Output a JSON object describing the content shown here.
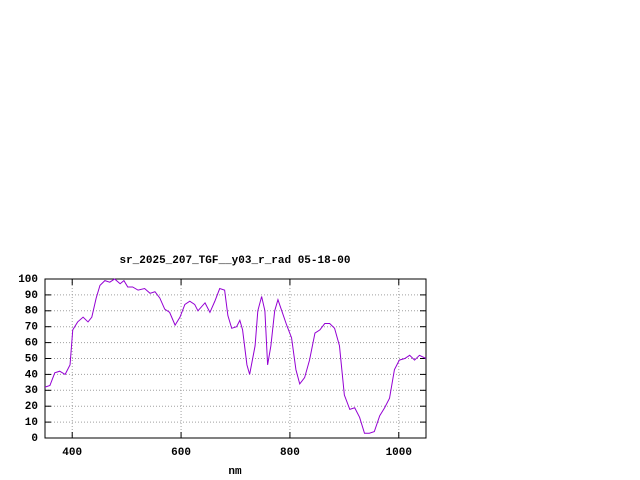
{
  "chart_data": {
    "type": "line",
    "title": "sr_2025_207_TGF__y03_r_rad 05-18-00",
    "x_label": "nm",
    "xlim": [
      350,
      1050
    ],
    "xticks": [
      400,
      600,
      800,
      1000
    ],
    "ylim": [
      0,
      100
    ],
    "yticks": [
      0,
      10,
      20,
      30,
      40,
      50,
      60,
      70,
      80,
      90,
      100
    ],
    "grid": true,
    "series": [
      {
        "color": "#9400d3",
        "x": [
          350,
          359,
          368,
          377,
          387,
          396,
          401,
          410,
          420,
          429,
          436,
          444,
          451,
          460,
          469,
          478,
          488,
          495,
          502,
          511,
          521,
          533,
          543,
          552,
          561,
          570,
          579,
          589,
          598,
          607,
          616,
          625,
          631,
          644,
          653,
          662,
          671,
          680,
          686,
          693,
          702,
          708,
          713,
          721,
          726,
          736,
          741,
          748,
          754,
          759,
          765,
          772,
          778,
          785,
          794,
          803,
          811,
          818,
          827,
          836,
          846,
          855,
          864,
          873,
          882,
          891,
          900,
          910,
          919,
          928,
          937,
          946,
          955,
          965,
          974,
          983,
          992,
          1001,
          1011,
          1020,
          1029,
          1038,
          1050
        ],
        "values": [
          32,
          33,
          41,
          42,
          40,
          46,
          68,
          73,
          76,
          73,
          76,
          88,
          96,
          99,
          98,
          100,
          97,
          99,
          95,
          95,
          93,
          94,
          91,
          92,
          88,
          81,
          79,
          71,
          76,
          84,
          86,
          84,
          80,
          85,
          79,
          86,
          94,
          93,
          77,
          69,
          70,
          74,
          68,
          46,
          40,
          58,
          80,
          89,
          80,
          46,
          58,
          80,
          87,
          80,
          71,
          63,
          43,
          34,
          38,
          49,
          66,
          68,
          72,
          72,
          69,
          58,
          27,
          18,
          19,
          13,
          3,
          3,
          4,
          14,
          19,
          25,
          43,
          49,
          50,
          52,
          49,
          52,
          50
        ]
      }
    ]
  }
}
